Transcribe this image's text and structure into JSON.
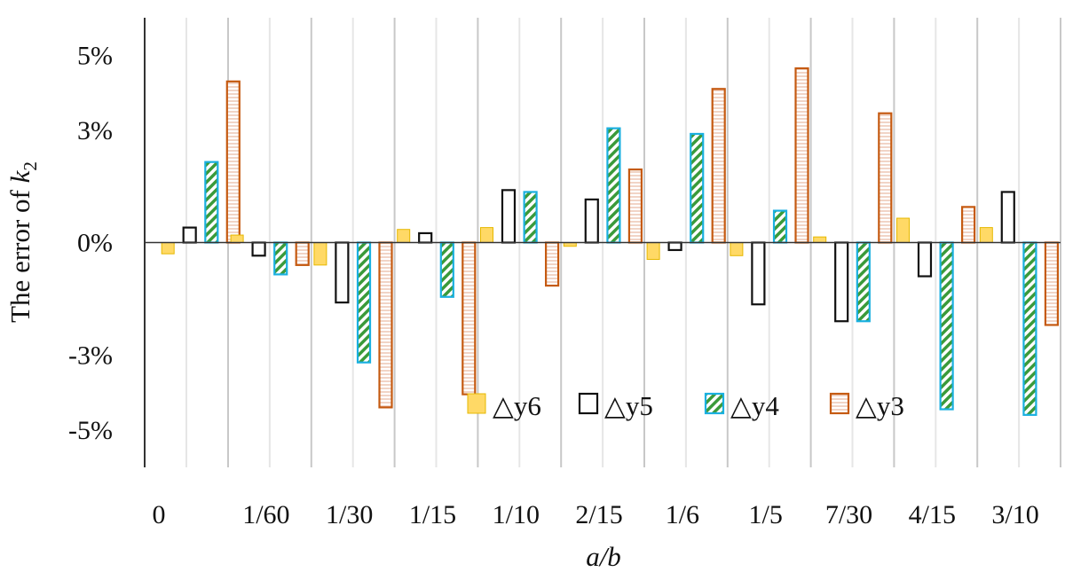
{
  "chart_data": {
    "type": "bar",
    "categories": [
      "0",
      "1/60",
      "1/30",
      "1/15",
      "1/10",
      "2/15",
      "1/6",
      "1/5",
      "7/30",
      "4/15",
      "3/10"
    ],
    "series": [
      {
        "name": "△y6",
        "color": "#ffd966",
        "stroke": "#e6b800",
        "pattern": "solid",
        "values": [
          -0.3,
          0.2,
          -0.6,
          0.35,
          0.4,
          -0.1,
          -0.45,
          -0.35,
          0.15,
          0.65,
          0.4
        ]
      },
      {
        "name": "△y5",
        "color": "#ffffff",
        "stroke": "#111111",
        "pattern": "hollow",
        "values": [
          0.4,
          -0.35,
          -1.6,
          0.25,
          1.4,
          1.15,
          -0.2,
          -1.65,
          -2.1,
          -0.9,
          1.35
        ]
      },
      {
        "name": "△y4",
        "color": "#1ab0e0",
        "stroke": "#1ab0e0",
        "pattern": "diagonal-green",
        "values": [
          2.15,
          -0.85,
          -3.2,
          -1.45,
          1.35,
          3.05,
          2.9,
          0.85,
          -2.1,
          -4.45,
          -4.6
        ]
      },
      {
        "name": "△y3",
        "color": "#c55a11",
        "stroke": "#c55a11",
        "pattern": "horizontal-lines",
        "values": [
          4.3,
          -0.6,
          -4.4,
          -4.05,
          -1.15,
          1.95,
          4.1,
          4.65,
          3.45,
          0.95,
          -2.2
        ]
      }
    ],
    "ylabel_text": "The error of ",
    "ylabel_var": "k",
    "ylabel_sub": "2",
    "xlabel": "a/b",
    "y_ticks": [
      "5%",
      "3%",
      "0%",
      "-3%",
      "-5%"
    ],
    "y_tick_values": [
      5,
      3,
      0,
      -3,
      -5
    ],
    "ylim": [
      -6,
      6
    ],
    "grid": true,
    "legend_position": "lower-center"
  }
}
